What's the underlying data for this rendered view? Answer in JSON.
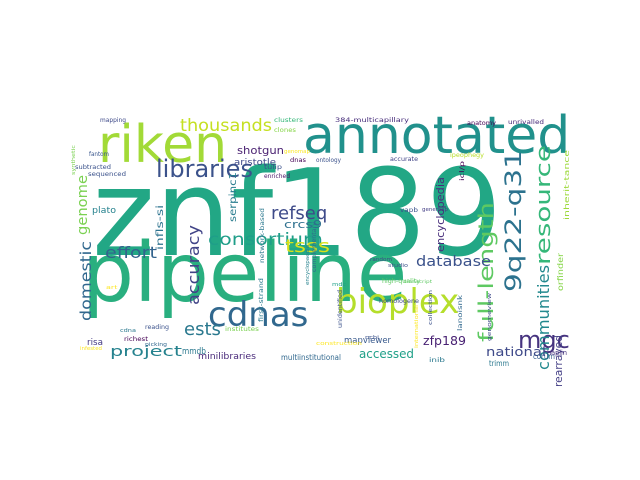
{
  "words": [
    {
      "text": "znf189",
      "color": "#22a785"
    },
    {
      "text": "pipeline",
      "color": "#29af7f"
    },
    {
      "text": "annotated",
      "color": "#21918c"
    },
    {
      "text": "riken",
      "color": "#a2da37"
    },
    {
      "text": "bioplex",
      "color": "#b5de2b"
    },
    {
      "text": "cdnas",
      "color": "#31688e"
    },
    {
      "text": "libraries",
      "color": "#3b528b"
    },
    {
      "text": "mgc",
      "color": "#46337f"
    },
    {
      "text": "9q22-q31",
      "color": "#2c728e"
    },
    {
      "text": "resource",
      "color": "#35b779"
    },
    {
      "text": "thousands",
      "color": "#c5e021"
    },
    {
      "text": "full-length",
      "color": "#5ec962"
    },
    {
      "text": "refseq",
      "color": "#3e4a89"
    },
    {
      "text": "ests",
      "color": "#2a788e"
    },
    {
      "text": "consortium",
      "color": "#1f9e89"
    },
    {
      "text": "communities",
      "color": "#23898e"
    },
    {
      "text": "accuracy",
      "color": "#414487"
    },
    {
      "text": "effort",
      "color": "#33638d"
    },
    {
      "text": "database",
      "color": "#3b528b"
    },
    {
      "text": "tsss",
      "color": "#d8e219"
    },
    {
      "text": "genome",
      "color": "#7ad151"
    },
    {
      "text": "domestic",
      "color": "#31688e"
    },
    {
      "text": "project",
      "color": "#26828e"
    },
    {
      "text": "encyclopedia",
      "color": "#472d7b"
    },
    {
      "text": "zfp189",
      "color": "#482173"
    },
    {
      "text": "accessed",
      "color": "#1fa088"
    },
    {
      "text": "national",
      "color": "#3e4989"
    },
    {
      "text": "rearrayed",
      "color": "#433e85"
    },
    {
      "text": "shotgun",
      "color": "#481f70"
    },
    {
      "text": "crcs9",
      "color": "#2d708e"
    },
    {
      "text": "serpinc1",
      "color": "#287c8e"
    },
    {
      "text": "infls-si",
      "color": "#2c728e"
    },
    {
      "text": "mapviewer",
      "color": "#38598c"
    },
    {
      "text": "orfinder",
      "color": "#86d549"
    },
    {
      "text": "aristotle",
      "color": "#3e4989"
    },
    {
      "text": "mmdb",
      "color": "#2a788e"
    },
    {
      "text": "minilibraries",
      "color": "#482979"
    },
    {
      "text": "plato",
      "color": "#26828e"
    },
    {
      "text": "risa",
      "color": "#443983"
    },
    {
      "text": "corum",
      "color": "#365c8d"
    },
    {
      "text": "trimm",
      "color": "#2a788e"
    },
    {
      "text": "haplin",
      "color": "#46327e"
    },
    {
      "text": "multiinstitutional",
      "color": "#31688e"
    },
    {
      "text": "inherit-tance",
      "color": "#9dd93b"
    },
    {
      "text": "ipeophegy",
      "color": "#b8de29"
    },
    {
      "text": "icl/p",
      "color": "#440154"
    },
    {
      "text": "vapb",
      "color": "#3b528b"
    },
    {
      "text": "network-based",
      "color": "#2a788e"
    },
    {
      "text": "tulip",
      "color": "#3b528b"
    },
    {
      "text": "enriched",
      "color": "#481467"
    },
    {
      "text": "unrivalled",
      "color": "#472a7a"
    },
    {
      "text": "anatomy",
      "color": "#440154"
    },
    {
      "text": "mapping",
      "color": "#3e4a89"
    },
    {
      "text": "clusters",
      "color": "#35b779"
    },
    {
      "text": "clones",
      "color": "#86d549"
    },
    {
      "text": "384-multicapillary",
      "color": "#472d7b"
    },
    {
      "text": "ontology",
      "color": "#3b528b"
    },
    {
      "text": "accurate",
      "color": "#414487"
    },
    {
      "text": "dnas",
      "color": "#440154"
    },
    {
      "text": "fantom",
      "color": "#39568c"
    },
    {
      "text": "sequenced",
      "color": "#3b528b"
    },
    {
      "text": "subtracted",
      "color": "#3b528b"
    },
    {
      "text": "synthetic",
      "color": "#7ad151"
    },
    {
      "text": "genomap",
      "color": "#fde725"
    },
    {
      "text": "genemap",
      "color": "#433e85"
    },
    {
      "text": "random",
      "color": "#3e4a89"
    },
    {
      "text": "complementary",
      "color": "#31688e"
    },
    {
      "text": "encyclopaedia",
      "color": "#26828e"
    },
    {
      "text": "unidentified",
      "color": "#3b528b"
    },
    {
      "text": "high-quality",
      "color": "#5ec962"
    },
    {
      "text": "homologene",
      "color": "#3e4a89"
    },
    {
      "text": "first-strand",
      "color": "#2a788e"
    },
    {
      "text": "institutes",
      "color": "#7ad151"
    },
    {
      "text": "mdc",
      "color": "#1fa088"
    },
    {
      "text": "reading",
      "color": "#3b528b"
    },
    {
      "text": "richest",
      "color": "#440154"
    },
    {
      "text": "picking",
      "color": "#31688e"
    },
    {
      "text": "cdna",
      "color": "#2a788e"
    },
    {
      "text": "construction",
      "color": "#fde725"
    },
    {
      "text": "international",
      "color": "#fde725"
    },
    {
      "text": "ncbi",
      "color": "#3b528b"
    },
    {
      "text": "inib",
      "color": "#2a788e"
    },
    {
      "text": "genomeview",
      "color": "#3e4a89"
    },
    {
      "text": "collection",
      "color": "#3b528b"
    },
    {
      "text": "lanoisnk",
      "color": "#31688e"
    },
    {
      "text": "transcript",
      "color": "#5ec962"
    },
    {
      "text": "studio",
      "color": "#3b528b"
    },
    {
      "text": "art",
      "color": "#fde725"
    },
    {
      "text": "infested",
      "color": "#fde725"
    }
  ]
}
